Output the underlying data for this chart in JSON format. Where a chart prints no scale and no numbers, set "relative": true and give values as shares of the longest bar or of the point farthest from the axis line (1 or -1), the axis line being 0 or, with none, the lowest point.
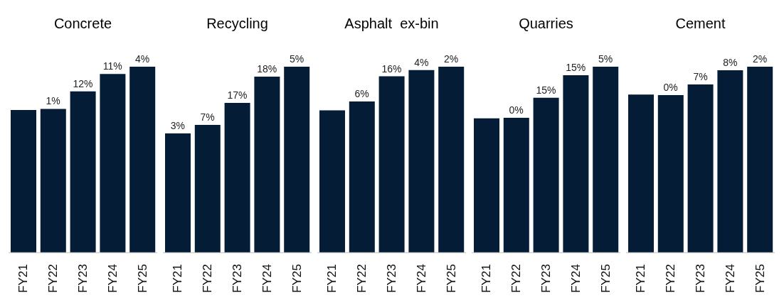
{
  "chart_data": [
    {
      "type": "bar",
      "title": "Concrete",
      "categories": [
        "FY21",
        "FY22",
        "FY23",
        "FY24",
        "FY25"
      ],
      "values": [
        0.767,
        0.773,
        0.867,
        0.961,
        1
      ],
      "color": "#041c36",
      "relative": true,
      "annotations": [
        {
          "text": "1%",
          "x": "FY22",
          "y": 0.773
        },
        {
          "text": "12%",
          "x": "FY23",
          "y": 0.867
        },
        {
          "text": "11%",
          "x": "FY24",
          "y": 0.961
        },
        {
          "text": "4%",
          "x": "FY25",
          "y": 1
        }
      ]
    },
    {
      "type": "bar",
      "title": "Recycling",
      "categories": [
        "FY21",
        "FY22",
        "FY23",
        "FY24",
        "FY25"
      ],
      "values": [
        0.641,
        0.687,
        0.805,
        0.947,
        1
      ],
      "color": "#041c36",
      "relative": true,
      "annotations": [
        {
          "text": "3%",
          "x": "FY21",
          "y": 0.641
        },
        {
          "text": "7%",
          "x": "FY22",
          "y": 0.687
        },
        {
          "text": "17%",
          "x": "FY23",
          "y": 0.805
        },
        {
          "text": "18%",
          "x": "FY24",
          "y": 0.947
        },
        {
          "text": "5%",
          "x": "FY25",
          "y": 1
        }
      ]
    },
    {
      "type": "bar",
      "title": "Asphalt  ex-bin",
      "categories": [
        "FY21",
        "FY22",
        "FY23",
        "FY24",
        "FY25"
      ],
      "values": [
        0.765,
        0.813,
        0.948,
        0.982,
        1
      ],
      "color": "#041c36",
      "relative": true,
      "annotations": [
        {
          "text": "6%",
          "x": "FY22",
          "y": 0.813
        },
        {
          "text": "16%",
          "x": "FY23",
          "y": 0.948
        },
        {
          "text": "4%",
          "x": "FY24",
          "y": 0.982
        },
        {
          "text": "2%",
          "x": "FY25",
          "y": 1
        }
      ]
    },
    {
      "type": "bar",
      "title": "Quarries",
      "categories": [
        "FY21",
        "FY22",
        "FY23",
        "FY24",
        "FY25"
      ],
      "values": [
        0.722,
        0.725,
        0.833,
        0.954,
        1
      ],
      "color": "#041c36",
      "relative": true,
      "annotations": [
        {
          "text": "0%",
          "x": "FY22",
          "y": 0.725
        },
        {
          "text": "15%",
          "x": "FY23",
          "y": 0.833
        },
        {
          "text": "15%",
          "x": "FY24",
          "y": 0.954
        },
        {
          "text": "5%",
          "x": "FY25",
          "y": 1
        }
      ]
    },
    {
      "type": "bar",
      "title": "Cement",
      "categories": [
        "FY21",
        "FY22",
        "FY23",
        "FY24",
        "FY25"
      ],
      "values": [
        0.85,
        0.847,
        0.905,
        0.981,
        1
      ],
      "color": "#041c36",
      "relative": true,
      "annotations": [
        {
          "text": "0%",
          "x": "FY22",
          "y": 0.847
        },
        {
          "text": "7%",
          "x": "FY23",
          "y": 0.905
        },
        {
          "text": "8%",
          "x": "FY24",
          "y": 0.981
        },
        {
          "text": "2%",
          "x": "FY25",
          "y": 1
        }
      ]
    }
  ]
}
